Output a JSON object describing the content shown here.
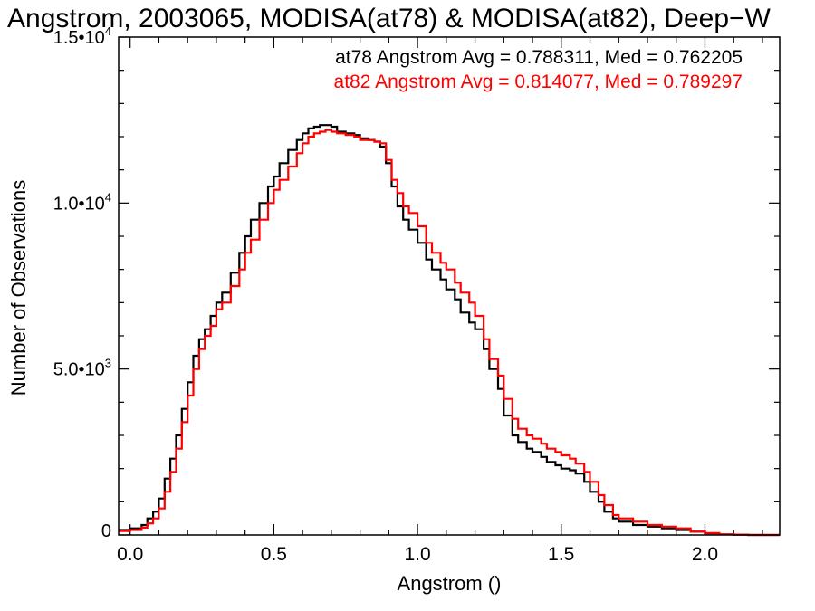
{
  "chart_data": {
    "type": "line",
    "step": true,
    "title": "Angstrom, 2003065, MODISA(at78) & MODISA(at82), Deep−W",
    "xlabel": "Angstrom ()",
    "ylabel": "Number of Observations",
    "xlim": [
      -0.04,
      2.26
    ],
    "ylim": [
      0,
      15000
    ],
    "x_ticks": [
      {
        "value": 0.0,
        "label": "0.0"
      },
      {
        "value": 0.5,
        "label": "0.5"
      },
      {
        "value": 1.0,
        "label": "1.0"
      },
      {
        "value": 1.5,
        "label": "1.5"
      },
      {
        "value": 2.0,
        "label": "2.0"
      }
    ],
    "y_ticks": [
      {
        "value": 0,
        "mantissa": "0",
        "exponent": ""
      },
      {
        "value": 5000,
        "mantissa": "5.0•10",
        "exponent": "3"
      },
      {
        "value": 10000,
        "mantissa": "1.0•10",
        "exponent": "4"
      },
      {
        "value": 15000,
        "mantissa": "1.5•10",
        "exponent": "4"
      }
    ],
    "grid": false,
    "legend_position": "top-right",
    "annotations": [
      {
        "text": "at78 Angstrom Avg = 0.788311, Med = 0.762205",
        "color": "#000000"
      },
      {
        "text": "at82 Angstrom Avg = 0.814077, Med = 0.789297",
        "color": "#ff0000"
      }
    ],
    "series": [
      {
        "color": "#000000",
        "x": [
          -0.04,
          0.0,
          0.04,
          0.06,
          0.08,
          0.1,
          0.12,
          0.14,
          0.16,
          0.18,
          0.2,
          0.22,
          0.24,
          0.26,
          0.28,
          0.3,
          0.32,
          0.35,
          0.38,
          0.4,
          0.42,
          0.45,
          0.48,
          0.5,
          0.52,
          0.55,
          0.58,
          0.6,
          0.62,
          0.64,
          0.66,
          0.68,
          0.7,
          0.72,
          0.75,
          0.78,
          0.8,
          0.83,
          0.85,
          0.87,
          0.89,
          0.91,
          0.93,
          0.95,
          0.97,
          1.0,
          1.03,
          1.05,
          1.08,
          1.1,
          1.13,
          1.15,
          1.18,
          1.2,
          1.23,
          1.25,
          1.28,
          1.3,
          1.33,
          1.35,
          1.38,
          1.4,
          1.43,
          1.45,
          1.48,
          1.5,
          1.53,
          1.55,
          1.58,
          1.6,
          1.63,
          1.65,
          1.68,
          1.7,
          1.75,
          1.8,
          1.85,
          1.9,
          1.95,
          2.0,
          2.05,
          2.1,
          2.15,
          2.2,
          2.26
        ],
        "y": [
          150,
          200,
          300,
          500,
          700,
          1100,
          1700,
          2300,
          3000,
          3800,
          4600,
          5400,
          5900,
          6200,
          6600,
          7000,
          7300,
          7900,
          8500,
          9000,
          9500,
          10000,
          10500,
          10800,
          11200,
          11600,
          11900,
          12100,
          12250,
          12300,
          12350,
          12350,
          12300,
          12150,
          12100,
          12050,
          11950,
          11900,
          11850,
          11700,
          11200,
          10500,
          9900,
          9500,
          9200,
          8800,
          8300,
          8000,
          7700,
          7400,
          7100,
          6700,
          6400,
          6200,
          5600,
          5000,
          4400,
          3600,
          3000,
          2800,
          2600,
          2500,
          2350,
          2200,
          2100,
          2000,
          1950,
          1850,
          1600,
          1300,
          1000,
          700,
          500,
          400,
          300,
          250,
          200,
          150,
          100,
          50,
          20,
          10,
          0,
          0,
          0
        ]
      },
      {
        "color": "#ff0000",
        "x": [
          -0.04,
          0.0,
          0.04,
          0.06,
          0.08,
          0.1,
          0.12,
          0.14,
          0.16,
          0.18,
          0.2,
          0.22,
          0.24,
          0.26,
          0.28,
          0.3,
          0.32,
          0.35,
          0.38,
          0.4,
          0.42,
          0.45,
          0.48,
          0.5,
          0.52,
          0.55,
          0.58,
          0.6,
          0.62,
          0.64,
          0.66,
          0.68,
          0.7,
          0.72,
          0.75,
          0.78,
          0.8,
          0.83,
          0.85,
          0.87,
          0.89,
          0.91,
          0.93,
          0.95,
          0.97,
          1.0,
          1.03,
          1.05,
          1.08,
          1.1,
          1.13,
          1.15,
          1.18,
          1.2,
          1.23,
          1.25,
          1.28,
          1.3,
          1.33,
          1.35,
          1.38,
          1.4,
          1.43,
          1.45,
          1.48,
          1.5,
          1.53,
          1.55,
          1.58,
          1.6,
          1.63,
          1.65,
          1.68,
          1.7,
          1.75,
          1.8,
          1.85,
          1.9,
          1.95,
          2.0,
          2.05,
          2.1,
          2.15,
          2.2,
          2.26
        ],
        "y": [
          120,
          150,
          220,
          350,
          500,
          800,
          1300,
          1900,
          2600,
          3400,
          4200,
          5000,
          5600,
          6000,
          6300,
          6800,
          7000,
          7500,
          8000,
          8500,
          8900,
          9500,
          10000,
          10400,
          10700,
          11100,
          11500,
          11800,
          12000,
          12100,
          12150,
          12200,
          12150,
          12100,
          12050,
          12000,
          11900,
          11900,
          11850,
          11800,
          11300,
          10700,
          10300,
          9900,
          9700,
          9300,
          8800,
          8500,
          8200,
          8000,
          7600,
          7300,
          7000,
          6600,
          5900,
          5300,
          4800,
          4100,
          3500,
          3200,
          3000,
          2900,
          2750,
          2600,
          2500,
          2400,
          2300,
          2150,
          1900,
          1600,
          1200,
          900,
          600,
          500,
          400,
          300,
          250,
          200,
          100,
          60,
          20,
          10,
          0,
          0,
          0
        ]
      }
    ]
  }
}
